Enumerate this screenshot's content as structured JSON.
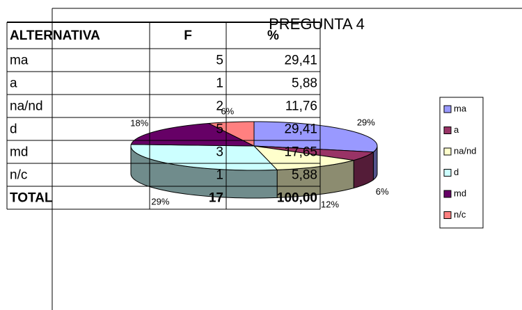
{
  "table": {
    "header": [
      "ALTERNATIVA",
      "F",
      "%"
    ],
    "rows": [
      [
        "ma",
        "5",
        "29,41"
      ],
      [
        "a",
        "1",
        "5,88"
      ],
      [
        "na/nd",
        "2",
        "11,76"
      ],
      [
        "d",
        "5",
        "29,41"
      ],
      [
        "md",
        "3",
        "17,65"
      ],
      [
        "n/c",
        "1",
        "5,88"
      ]
    ],
    "total": [
      "TOTAL",
      "17",
      "100,00"
    ]
  },
  "chart_data": {
    "type": "pie",
    "title": "PREGUNTA 4",
    "categories": [
      "ma",
      "a",
      "na/nd",
      "d",
      "md",
      "n/c"
    ],
    "values": [
      29,
      6,
      12,
      29,
      18,
      6
    ],
    "value_labels": [
      "29%",
      "6%",
      "12%",
      "29%",
      "18%",
      "6%"
    ],
    "colors": [
      "#9999ff",
      "#993366",
      "#ffffcc",
      "#ccffff",
      "#660066",
      "#ff8080"
    ],
    "legend": "right"
  }
}
